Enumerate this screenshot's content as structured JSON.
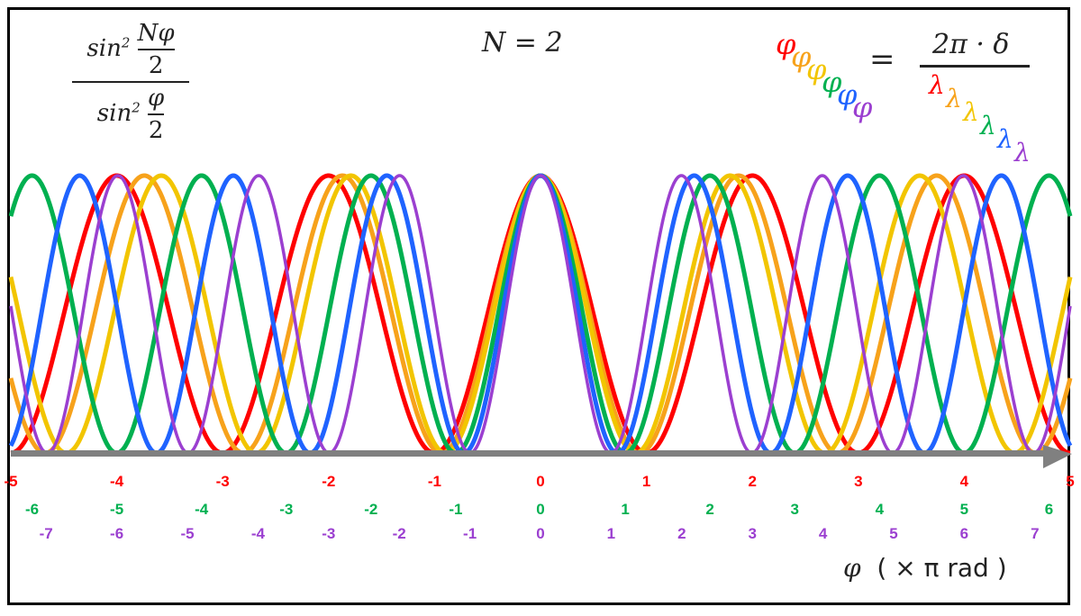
{
  "chart_data": {
    "type": "line",
    "title": "N = 2",
    "N": 2,
    "formula_left": {
      "num_func": "sin",
      "num_exp": "2",
      "num_arg_top": "Nφ",
      "num_arg_bottom": "2",
      "den_func": "sin",
      "den_exp": "2",
      "den_arg_top": "φ",
      "den_arg_bottom": "2"
    },
    "formula_right": {
      "lhs": "φ",
      "equals": "=",
      "numerator": "2π · δ",
      "denominator": "λ"
    },
    "xlabel": {
      "symbol": "φ",
      "unit": "( × π  rad )"
    },
    "xlim": [
      -5,
      5
    ],
    "ylim": [
      0,
      1
    ],
    "grid": false,
    "series": [
      {
        "color": "#ff0000",
        "peak_spacing": 2.0
      },
      {
        "color": "#f7a21b",
        "peak_spacing": 1.87
      },
      {
        "color": "#f2c500",
        "peak_spacing": 1.79
      },
      {
        "color": "#00b050",
        "peak_spacing": 1.6
      },
      {
        "color": "#1f63ff",
        "peak_spacing": 1.45
      },
      {
        "color": "#9b3fd0",
        "peak_spacing": 1.33
      }
    ],
    "tick_rows": [
      {
        "color": "#ff0000",
        "ticks": [
          -5,
          -4,
          -3,
          -2,
          -1,
          0,
          1,
          2,
          3,
          4,
          5
        ],
        "scale": 1.0
      },
      {
        "color": "#00b050",
        "ticks": [
          -6,
          -5,
          -4,
          -3,
          -2,
          -1,
          0,
          1,
          2,
          3,
          4,
          5,
          6
        ],
        "scale": 1.25
      },
      {
        "color": "#9b3fd0",
        "ticks": [
          -7,
          -6,
          -5,
          -4,
          -3,
          -2,
          -1,
          0,
          1,
          2,
          3,
          4,
          5,
          6,
          7
        ],
        "scale": 1.5
      }
    ],
    "axis_color": "#808080"
  }
}
